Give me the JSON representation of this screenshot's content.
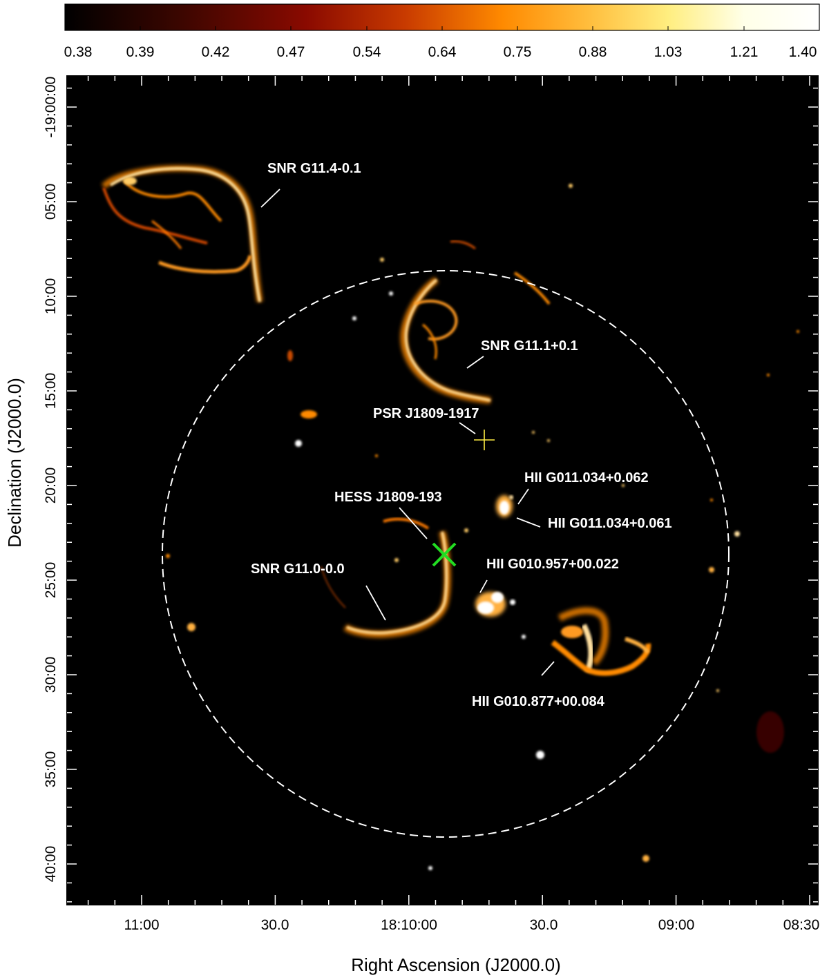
{
  "colorbar": {
    "ticks": [
      "0.38",
      "0.39",
      "0.42",
      "0.47",
      "0.54",
      "0.64",
      "0.75",
      "0.88",
      "1.03",
      "1.21",
      "1.40"
    ],
    "colors": [
      "#000000",
      "#3a0600",
      "#8a0a00",
      "#c83a00",
      "#ff8a00",
      "#ffc040",
      "#ffee80",
      "#ffffe8",
      "#ffffff"
    ]
  },
  "axes": {
    "xlabel": "Right Ascension (J2000.0)",
    "ylabel": "Declination (J2000.0)",
    "x_ticks": [
      "11:00",
      "30.0",
      "18:10:00",
      "30.0",
      "09:00",
      "08:30"
    ],
    "y_ticks": [
      "-19:00:00",
      "05:00",
      "10:00",
      "15:00",
      "20:00",
      "25:00",
      "30:00",
      "35:00",
      "40:00"
    ]
  },
  "annotations": [
    {
      "id": "snr-g11-4",
      "text": "SNR G11.4-0.1"
    },
    {
      "id": "snr-g11-1",
      "text": "SNR G11.1+0.1"
    },
    {
      "id": "psr",
      "text": "PSR J1809-1917"
    },
    {
      "id": "hii-034-062",
      "text": "HII G011.034+0.062"
    },
    {
      "id": "hess",
      "text": "HESS J1809-193"
    },
    {
      "id": "hii-034-061",
      "text": "HII G011.034+0.061"
    },
    {
      "id": "hii-957",
      "text": "HII G010.957+00.022"
    },
    {
      "id": "snr-g11-0",
      "text": "SNR G11.0-0.0"
    },
    {
      "id": "hii-877",
      "text": "HII G010.877+00.084"
    }
  ],
  "markers": {
    "hess_color": "#22dd22",
    "psr_color": "#ffee44",
    "circle_color": "#ffffff"
  }
}
